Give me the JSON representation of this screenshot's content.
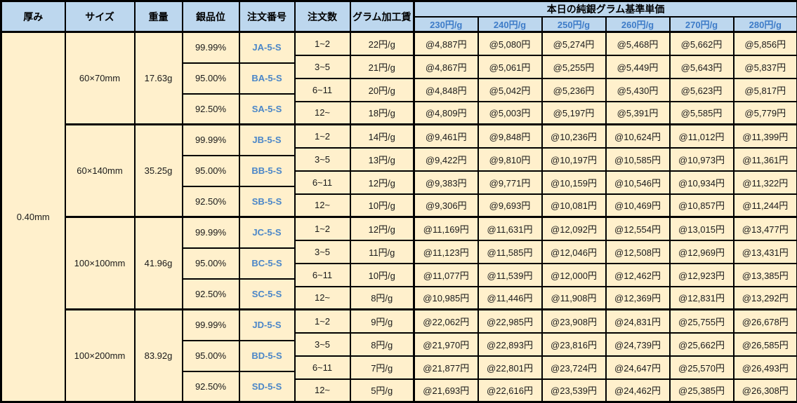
{
  "table": {
    "headers": {
      "thickness": "厚み",
      "size": "サイズ",
      "weight": "重量",
      "purity": "銀品位",
      "order_no": "注文番号",
      "order_qty": "注文数",
      "gram_fee": "グラム加工賃",
      "price_group": "本日の純銀グラム基準単価",
      "price_tiers": [
        "230円/g",
        "240円/g",
        "250円/g",
        "260円/g",
        "270円/g",
        "280円/g"
      ]
    },
    "thickness_value": "0.40mm",
    "colors": {
      "header_bg": "#BDD7EE",
      "body_bg": "#FFF0CC",
      "accent_blue": "#4A86C8",
      "border": "#000000"
    },
    "blocks": [
      {
        "size": "60×70mm",
        "weight": "17.63g",
        "purities": [
          {
            "purity": "99.99%",
            "order_code": "JA-5-S"
          },
          {
            "purity": "95.00%",
            "order_code": "BA-5-S"
          },
          {
            "purity": "92.50%",
            "order_code": "SA-5-S"
          }
        ],
        "rows": [
          {
            "qty": "1~2",
            "fee": "22円/g",
            "prices": [
              "@4,887円",
              "@5,080円",
              "@5,274円",
              "@5,468円",
              "@5,662円",
              "@5,856円"
            ]
          },
          {
            "qty": "3~5",
            "fee": "21円/g",
            "prices": [
              "@4,867円",
              "@5,061円",
              "@5,255円",
              "@5,449円",
              "@5,643円",
              "@5,837円"
            ]
          },
          {
            "qty": "6~11",
            "fee": "20円/g",
            "prices": [
              "@4,848円",
              "@5,042円",
              "@5,236円",
              "@5,430円",
              "@5,623円",
              "@5,817円"
            ]
          },
          {
            "qty": "12~",
            "fee": "18円/g",
            "prices": [
              "@4,809円",
              "@5,003円",
              "@5,197円",
              "@5,391円",
              "@5,585円",
              "@5,779円"
            ]
          }
        ]
      },
      {
        "size": "60×140mm",
        "weight": "35.25g",
        "purities": [
          {
            "purity": "99.99%",
            "order_code": "JB-5-S"
          },
          {
            "purity": "95.00%",
            "order_code": "BB-5-S"
          },
          {
            "purity": "92.50%",
            "order_code": "SB-5-S"
          }
        ],
        "rows": [
          {
            "qty": "1~2",
            "fee": "14円/g",
            "prices": [
              "@9,461円",
              "@9,848円",
              "@10,236円",
              "@10,624円",
              "@11,012円",
              "@11,399円"
            ]
          },
          {
            "qty": "3~5",
            "fee": "13円/g",
            "prices": [
              "@9,422円",
              "@9,810円",
              "@10,197円",
              "@10,585円",
              "@10,973円",
              "@11,361円"
            ]
          },
          {
            "qty": "6~11",
            "fee": "12円/g",
            "prices": [
              "@9,383円",
              "@9,771円",
              "@10,159円",
              "@10,546円",
              "@10,934円",
              "@11,322円"
            ]
          },
          {
            "qty": "12~",
            "fee": "10円/g",
            "prices": [
              "@9,306円",
              "@9,693円",
              "@10,081円",
              "@10,469円",
              "@10,857円",
              "@11,244円"
            ]
          }
        ]
      },
      {
        "size": "100×100mm",
        "weight": "41.96g",
        "purities": [
          {
            "purity": "99.99%",
            "order_code": "JC-5-S"
          },
          {
            "purity": "95.00%",
            "order_code": "BC-5-S"
          },
          {
            "purity": "92.50%",
            "order_code": "SC-5-S"
          }
        ],
        "rows": [
          {
            "qty": "1~2",
            "fee": "12円/g",
            "prices": [
              "@11,169円",
              "@11,631円",
              "@12,092円",
              "@12,554円",
              "@13,015円",
              "@13,477円"
            ]
          },
          {
            "qty": "3~5",
            "fee": "11円/g",
            "prices": [
              "@11,123円",
              "@11,585円",
              "@12,046円",
              "@12,508円",
              "@12,969円",
              "@13,431円"
            ]
          },
          {
            "qty": "6~11",
            "fee": "10円/g",
            "prices": [
              "@11,077円",
              "@11,539円",
              "@12,000円",
              "@12,462円",
              "@12,923円",
              "@13,385円"
            ]
          },
          {
            "qty": "12~",
            "fee": "8円/g",
            "prices": [
              "@10,985円",
              "@11,446円",
              "@11,908円",
              "@12,369円",
              "@12,831円",
              "@13,292円"
            ]
          }
        ]
      },
      {
        "size": "100×200mm",
        "weight": "83.92g",
        "purities": [
          {
            "purity": "99.99%",
            "order_code": "JD-5-S"
          },
          {
            "purity": "95.00%",
            "order_code": "BD-5-S"
          },
          {
            "purity": "92.50%",
            "order_code": "SD-5-S"
          }
        ],
        "rows": [
          {
            "qty": "1~2",
            "fee": "9円/g",
            "prices": [
              "@22,062円",
              "@22,985円",
              "@23,908円",
              "@24,831円",
              "@25,755円",
              "@26,678円"
            ]
          },
          {
            "qty": "3~5",
            "fee": "8円/g",
            "prices": [
              "@21,970円",
              "@22,893円",
              "@23,816円",
              "@24,739円",
              "@25,662円",
              "@26,585円"
            ]
          },
          {
            "qty": "6~11",
            "fee": "7円/g",
            "prices": [
              "@21,877円",
              "@22,801円",
              "@23,724円",
              "@24,647円",
              "@25,570円",
              "@26,493円"
            ]
          },
          {
            "qty": "12~",
            "fee": "5円/g",
            "prices": [
              "@21,693円",
              "@22,616円",
              "@23,539円",
              "@24,462円",
              "@25,385円",
              "@26,308円"
            ]
          }
        ]
      }
    ]
  }
}
